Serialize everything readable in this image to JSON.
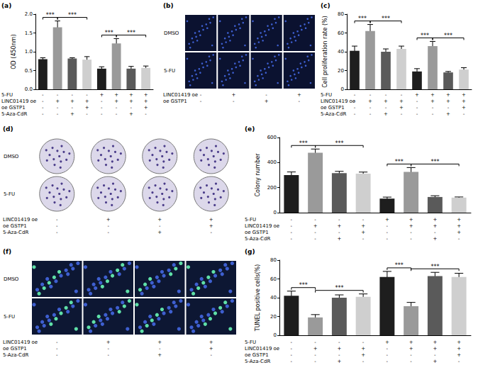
{
  "chart_data": [
    {
      "type": "bar",
      "title": "(a)",
      "ylabel": "OD (450nm)",
      "categories": [
        null,
        null,
        null,
        null,
        null,
        null,
        null,
        null
      ],
      "values": [
        0.8,
        1.65,
        0.82,
        0.79,
        0.55,
        1.22,
        0.55,
        0.57
      ],
      "errors": [
        0.04,
        0.17,
        0.02,
        0.08,
        0.05,
        0.13,
        0.06,
        0.05
      ],
      "colors": [
        "#1e1e1e",
        "#9a9a9a",
        "#5a5a5a",
        "#cfcfcf",
        "#1e1e1e",
        "#9a9a9a",
        "#5a5a5a",
        "#cfcfcf"
      ],
      "ylim": [
        0,
        2
      ],
      "yticks": [
        {
          "value": 0,
          "label": "0.0"
        },
        {
          "value": 0.5,
          "label": "0.5"
        },
        {
          "value": 1,
          "label": "1.0"
        },
        {
          "value": 1.5,
          "label": "1.5"
        },
        {
          "value": 2,
          "label": "2.0"
        }
      ],
      "tick_labels": "y",
      "grid": false,
      "significance": [
        {
          "between": [
            0,
            1
          ],
          "label": "***"
        },
        {
          "between": [
            1,
            3
          ],
          "label": "***"
        },
        {
          "between": [
            4,
            5
          ],
          "label": "***"
        },
        {
          "between": [
            5,
            7
          ],
          "label": "***"
        }
      ],
      "conditions": [
        {
          "label": "5-FU",
          "marks": [
            "-",
            "-",
            "-",
            "-",
            "+",
            "+",
            "+",
            "+"
          ]
        },
        {
          "label": "LINC01419 oe",
          "marks": [
            "-",
            "+",
            "+",
            "+",
            "-",
            "+",
            "+",
            "+"
          ]
        },
        {
          "label": "oe GSTP1",
          "marks": [
            "-",
            "-",
            "-",
            "+",
            "-",
            "-",
            "-",
            "+"
          ]
        },
        {
          "label": "5-Aza-CdR",
          "marks": [
            "-",
            "-",
            "+",
            "-",
            "-",
            "-",
            "+",
            "-"
          ]
        }
      ]
    },
    {
      "type": "bar",
      "title": "(c)",
      "ylabel": "Cell proliferation rate (%)",
      "categories": [
        null,
        null,
        null,
        null,
        null,
        null,
        null,
        null
      ],
      "values": [
        41,
        62,
        40,
        43,
        19,
        46,
        18,
        21
      ],
      "errors": [
        5,
        7,
        3,
        3,
        3,
        5,
        1,
        2
      ],
      "colors": [
        "#1e1e1e",
        "#9a9a9a",
        "#5a5a5a",
        "#cfcfcf",
        "#1e1e1e",
        "#9a9a9a",
        "#5a5a5a",
        "#cfcfcf"
      ],
      "ylim": [
        0,
        80
      ],
      "yticks": [
        0,
        20,
        40,
        60,
        80
      ],
      "tick_labels": "y",
      "grid": false,
      "significance": [
        {
          "between": [
            0,
            1
          ],
          "label": "***"
        },
        {
          "between": [
            1,
            3
          ],
          "label": "***"
        },
        {
          "between": [
            4,
            5
          ],
          "label": "***"
        },
        {
          "between": [
            5,
            7
          ],
          "label": "***"
        }
      ],
      "conditions": [
        {
          "label": "5-FU",
          "marks": [
            "-",
            "-",
            "-",
            "-",
            "+",
            "+",
            "+",
            "+"
          ]
        },
        {
          "label": "LINC01419 oe",
          "marks": [
            "-",
            "+",
            "+",
            "+",
            "-",
            "+",
            "+",
            "+"
          ]
        },
        {
          "label": "oe GSTP1",
          "marks": [
            "-",
            "-",
            "-",
            "+",
            "-",
            "-",
            "-",
            "+"
          ]
        },
        {
          "label": "5-Aza-CdR",
          "marks": [
            "-",
            "-",
            "+",
            "-",
            "-",
            "-",
            "+",
            "-"
          ]
        }
      ]
    },
    {
      "type": "bar",
      "title": "(e)",
      "ylabel": "Colony number",
      "categories": [
        null,
        null,
        null,
        null,
        null,
        null,
        null,
        null
      ],
      "values": [
        300,
        478,
        315,
        312,
        112,
        325,
        125,
        120
      ],
      "errors": [
        25,
        30,
        15,
        12,
        12,
        35,
        10,
        5
      ],
      "colors": [
        "#1e1e1e",
        "#9a9a9a",
        "#5a5a5a",
        "#cfcfcf",
        "#1e1e1e",
        "#9a9a9a",
        "#5a5a5a",
        "#cfcfcf"
      ],
      "ylim": [
        0,
        600
      ],
      "yticks": [
        0,
        200,
        400,
        600
      ],
      "tick_labels": "y",
      "grid": false,
      "significance": [
        {
          "between": [
            0,
            1
          ],
          "label": "***"
        },
        {
          "between": [
            1,
            3
          ],
          "label": "***"
        },
        {
          "between": [
            4,
            5
          ],
          "label": "***"
        },
        {
          "between": [
            5,
            7
          ],
          "label": "***"
        }
      ],
      "conditions": [
        {
          "label": "5-FU",
          "marks": [
            "-",
            "-",
            "-",
            "-",
            "+",
            "+",
            "+",
            "+"
          ]
        },
        {
          "label": "LINC01419 oe",
          "marks": [
            "-",
            "+",
            "+",
            "+",
            "-",
            "+",
            "+",
            "+"
          ]
        },
        {
          "label": "oe GSTP1",
          "marks": [
            "-",
            "-",
            "-",
            "+",
            "-",
            "-",
            "-",
            "+"
          ]
        },
        {
          "label": "5-Aza-CdR",
          "marks": [
            "-",
            "-",
            "+",
            "-",
            "-",
            "-",
            "+",
            "-"
          ]
        }
      ]
    },
    {
      "type": "bar",
      "title": "(g)",
      "ylabel": "TUNEL positive cells(%)",
      "categories": [
        null,
        null,
        null,
        null,
        null,
        null,
        null,
        null
      ],
      "values": [
        42,
        19,
        40,
        41,
        62,
        31,
        63,
        62
      ],
      "errors": [
        5,
        3,
        3,
        3,
        6,
        4,
        4,
        4
      ],
      "colors": [
        "#1e1e1e",
        "#9a9a9a",
        "#5a5a5a",
        "#cfcfcf",
        "#1e1e1e",
        "#9a9a9a",
        "#5a5a5a",
        "#cfcfcf"
      ],
      "ylim": [
        0,
        80
      ],
      "yticks": [
        0,
        20,
        40,
        60,
        80
      ],
      "tick_labels": "y",
      "grid": false,
      "significance": [
        {
          "between": [
            0,
            1
          ],
          "label": "***"
        },
        {
          "between": [
            1,
            3
          ],
          "label": "***"
        },
        {
          "between": [
            4,
            5
          ],
          "label": "***"
        },
        {
          "between": [
            5,
            7
          ],
          "label": "***"
        }
      ],
      "conditions": [
        {
          "label": "5-FU",
          "marks": [
            "-",
            "-",
            "-",
            "-",
            "+",
            "+",
            "+",
            "+"
          ]
        },
        {
          "label": "LINC01419 oe",
          "marks": [
            "-",
            "+",
            "+",
            "+",
            "-",
            "+",
            "+",
            "+"
          ]
        },
        {
          "label": "oe GSTP1",
          "marks": [
            "-",
            "-",
            "-",
            "+",
            "-",
            "-",
            "-",
            "+"
          ]
        },
        {
          "label": "5-Aza-CdR",
          "marks": [
            "-",
            "-",
            "+",
            "-",
            "-",
            "-",
            "+",
            "-"
          ]
        }
      ]
    }
  ],
  "image_panels": [
    {
      "title": "(b)",
      "row_labels": [
        "DMSO",
        "5-FU"
      ],
      "conditions": [
        {
          "label": "LINC01419 oe",
          "marks": [
            "-",
            "+",
            "-",
            "+"
          ]
        },
        {
          "label": "oe GSTP1",
          "marks": [
            "-",
            "-",
            "+",
            "-"
          ]
        }
      ]
    },
    {
      "title": "(d)",
      "row_labels": [
        "DMSO",
        "5-FU"
      ],
      "conditions": [
        {
          "label": "LINC01419 oe",
          "marks": [
            "-",
            "+",
            "+",
            "+"
          ]
        },
        {
          "label": "oe GSTP1",
          "marks": [
            "-",
            "-",
            "-",
            "+"
          ]
        },
        {
          "label": "5-Aza-CdR",
          "marks": [
            "-",
            "-",
            "+",
            "-"
          ]
        }
      ]
    },
    {
      "title": "(f)",
      "row_labels": [
        "DMSO",
        "5-FU"
      ],
      "conditions": [
        {
          "label": "LINC01419 oe",
          "marks": [
            "-",
            "+",
            "+",
            "+"
          ]
        },
        {
          "label": "oe GSTP1",
          "marks": [
            "-",
            "-",
            "-",
            "+"
          ]
        },
        {
          "label": "5-Aza-CdR",
          "marks": [
            "-",
            "-",
            "+",
            "-"
          ]
        }
      ]
    }
  ]
}
